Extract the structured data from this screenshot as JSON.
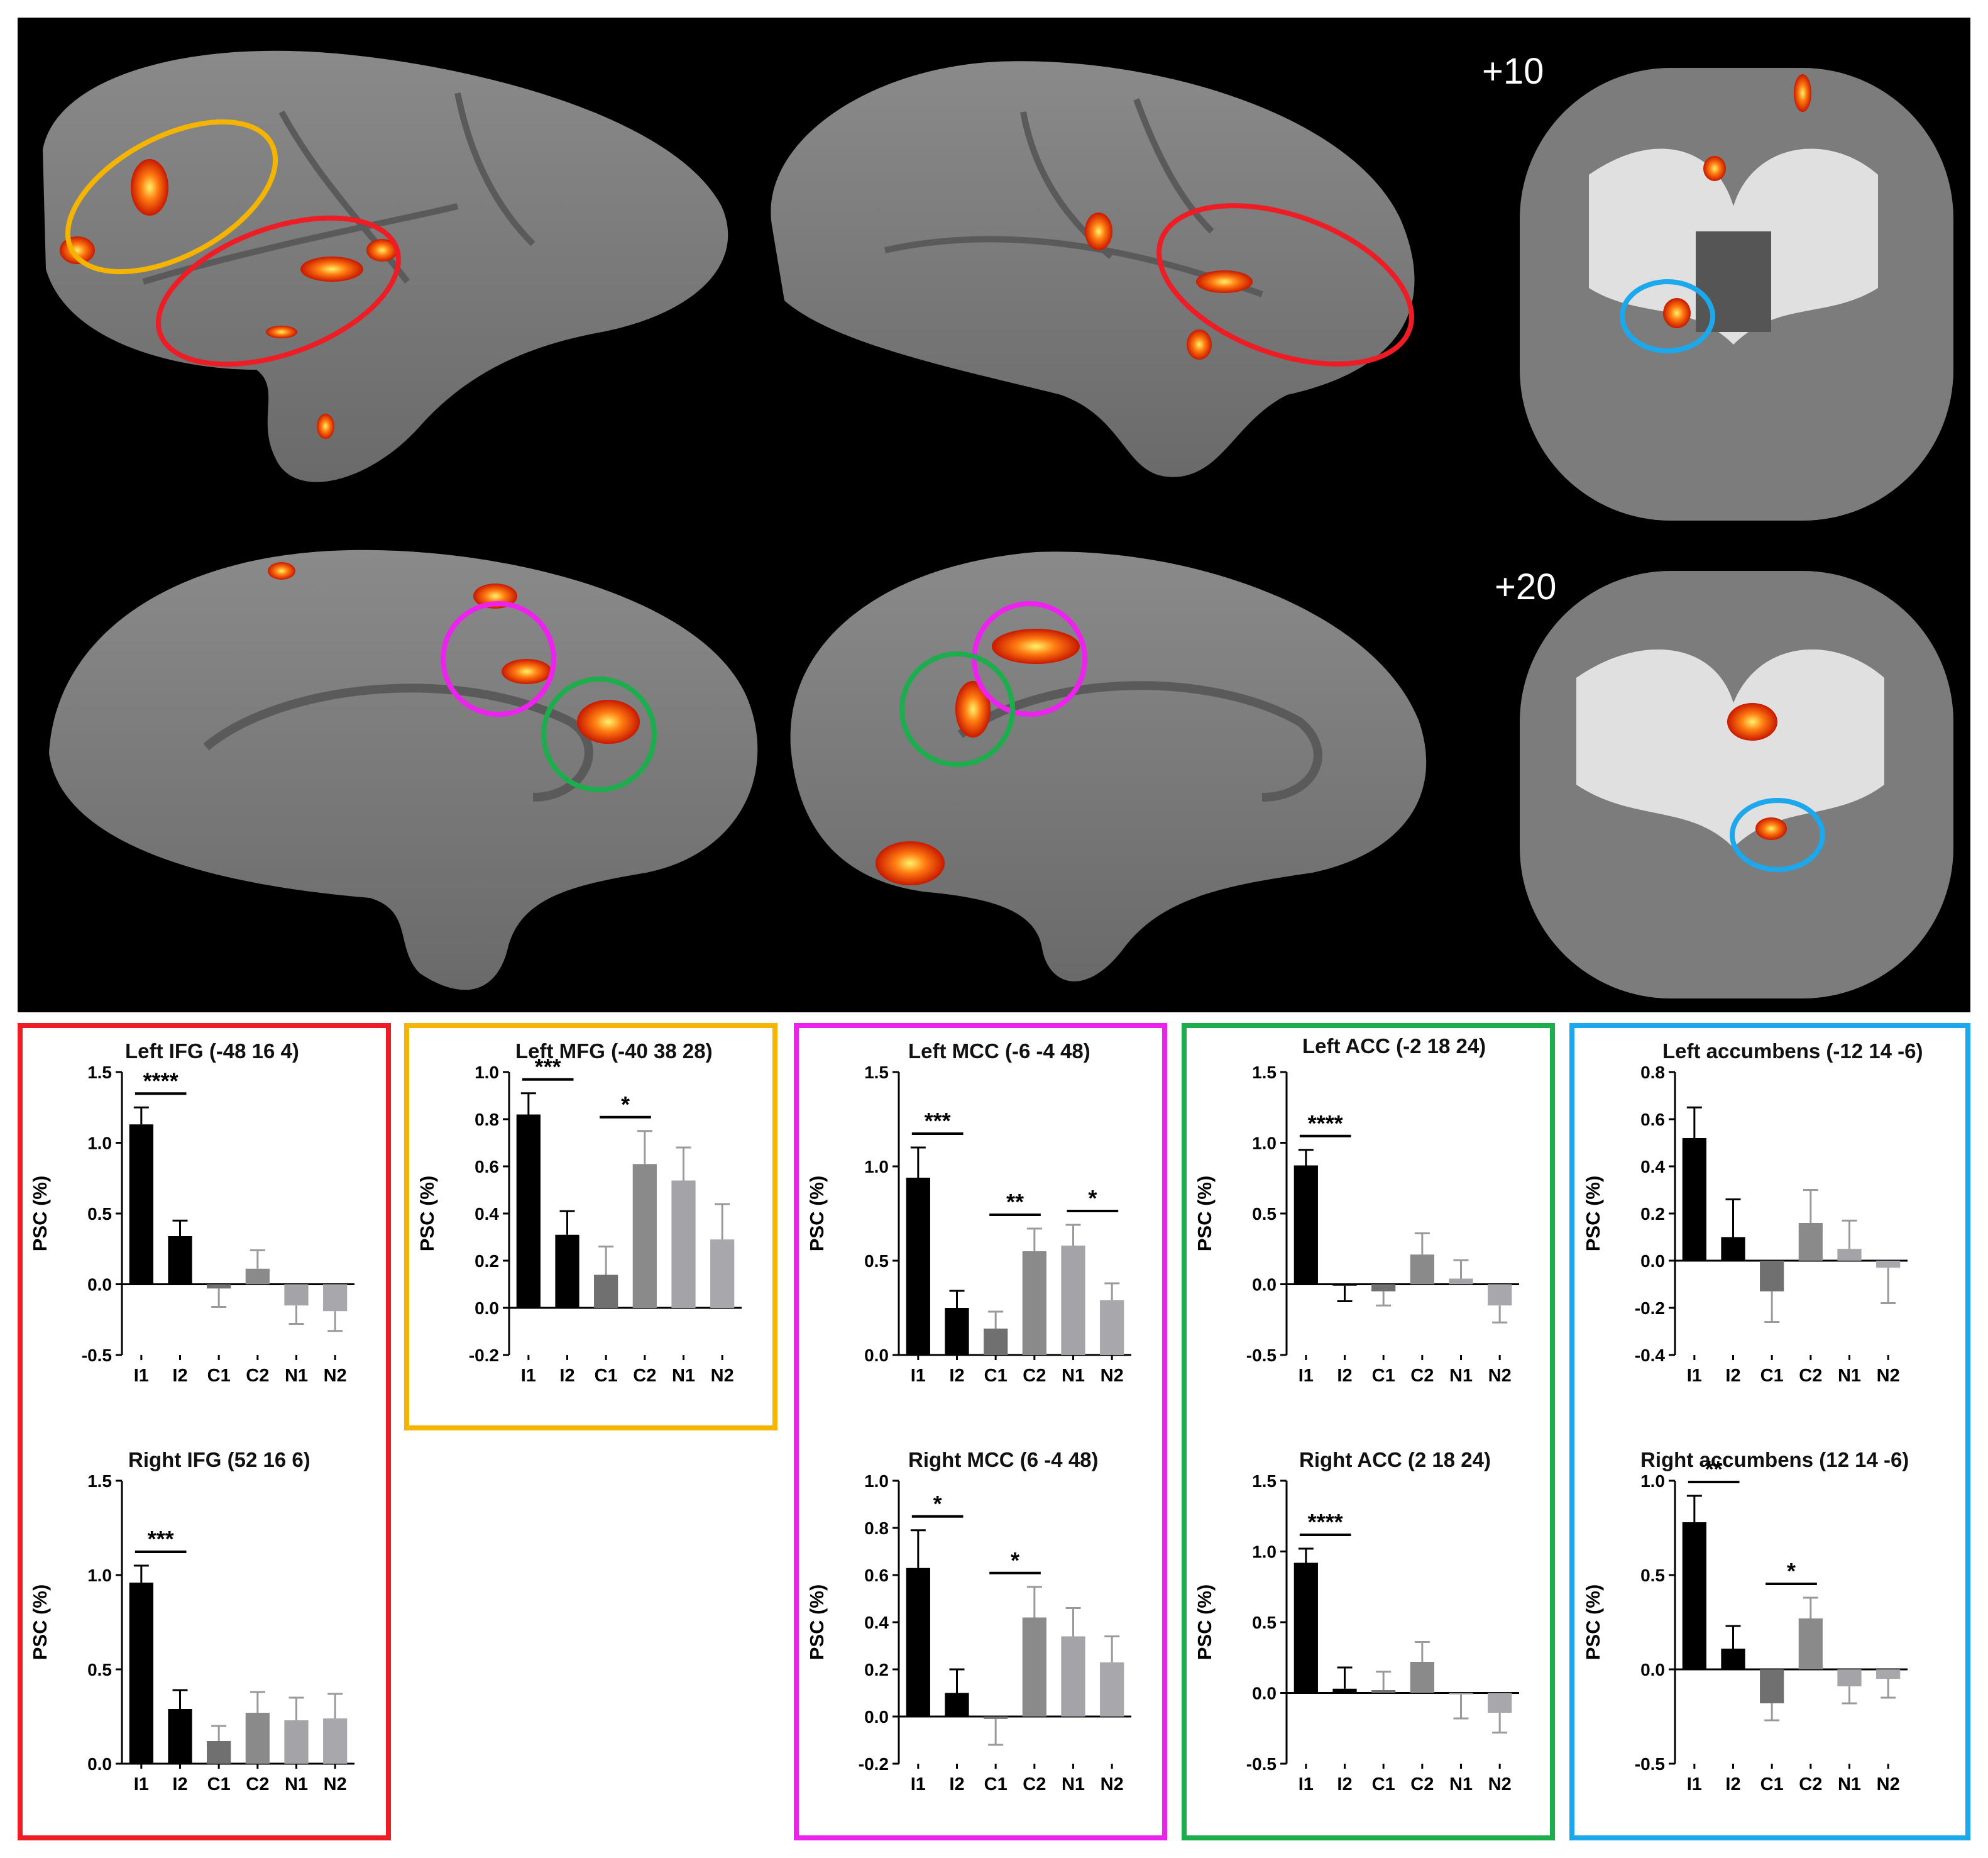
{
  "brain": {
    "slice_labels": [
      "+10",
      "+20"
    ]
  },
  "categories": [
    "I1",
    "I2",
    "C1",
    "C2",
    "N1",
    "N2"
  ],
  "colors": {
    "bars": [
      "#000000",
      "#000000",
      "#707070",
      "#8a8a8a",
      "#a4a4a8",
      "#a8a8ac"
    ],
    "box_red": "#ee1c24",
    "box_yellow": "#f5b400",
    "box_magenta": "#ee22ee",
    "box_green": "#1cad4c",
    "box_blue": "#1ca8ec"
  },
  "chart_data": [
    {
      "type": "bar",
      "title": "Left IFG (-48 16 4)",
      "ylabel": "PSC (%)",
      "categories": [
        "I1",
        "I2",
        "C1",
        "C2",
        "N1",
        "N2"
      ],
      "values": [
        1.13,
        0.34,
        -0.03,
        0.11,
        -0.15,
        -0.19
      ],
      "errors": [
        0.12,
        0.11,
        0.13,
        0.13,
        0.13,
        0.14
      ],
      "ylim": [
        -0.5,
        1.5
      ],
      "yticks": [
        "-0.5",
        "0.0",
        "0.5",
        "1.0",
        "1.5"
      ],
      "significance": [
        {
          "from": "I1",
          "to": "I2",
          "label": "****"
        }
      ]
    },
    {
      "type": "bar",
      "title": "Right IFG (52 16 6)",
      "ylabel": "PSC (%)",
      "categories": [
        "I1",
        "I2",
        "C1",
        "C2",
        "N1",
        "N2"
      ],
      "values": [
        0.96,
        0.29,
        0.12,
        0.27,
        0.23,
        0.24
      ],
      "errors": [
        0.09,
        0.1,
        0.08,
        0.11,
        0.12,
        0.13
      ],
      "ylim": [
        0,
        1.5
      ],
      "yticks": [
        "0.0",
        "0.5",
        "1.0",
        "1.5"
      ],
      "significance": [
        {
          "from": "I1",
          "to": "I2",
          "label": "***"
        }
      ]
    },
    {
      "type": "bar",
      "title": "Left MFG (-40 38 28)",
      "ylabel": "PSC (%)",
      "categories": [
        "I1",
        "I2",
        "C1",
        "C2",
        "N1",
        "N2"
      ],
      "values": [
        0.82,
        0.31,
        0.14,
        0.61,
        0.54,
        0.29
      ],
      "errors": [
        0.09,
        0.1,
        0.12,
        0.14,
        0.14,
        0.15
      ],
      "ylim": [
        -0.2,
        1.0
      ],
      "yticks": [
        "-0.2",
        "0.0",
        "0.2",
        "0.4",
        "0.6",
        "0.8",
        "1.0"
      ],
      "significance": [
        {
          "from": "I1",
          "to": "I2",
          "label": "***"
        },
        {
          "from": "C1",
          "to": "C2",
          "label": "*"
        }
      ]
    },
    {
      "type": "bar",
      "title": "Left MCC (-6 -4 48)",
      "ylabel": "PSC (%)",
      "categories": [
        "I1",
        "I2",
        "C1",
        "C2",
        "N1",
        "N2"
      ],
      "values": [
        0.94,
        0.25,
        0.14,
        0.55,
        0.58,
        0.29
      ],
      "errors": [
        0.16,
        0.09,
        0.09,
        0.12,
        0.11,
        0.09
      ],
      "ylim": [
        0,
        1.5
      ],
      "yticks": [
        "0.0",
        "0.5",
        "1.0",
        "1.5"
      ],
      "significance": [
        {
          "from": "I1",
          "to": "I2",
          "label": "***"
        },
        {
          "from": "C1",
          "to": "C2",
          "label": "**"
        },
        {
          "from": "N1",
          "to": "N2",
          "label": "*"
        }
      ]
    },
    {
      "type": "bar",
      "title": "Right MCC (6 -4 48)",
      "ylabel": "PSC (%)",
      "categories": [
        "I1",
        "I2",
        "C1",
        "C2",
        "N1",
        "N2"
      ],
      "values": [
        0.63,
        0.1,
        -0.01,
        0.42,
        0.34,
        0.23
      ],
      "errors": [
        0.16,
        0.1,
        0.11,
        0.13,
        0.12,
        0.11
      ],
      "ylim": [
        -0.2,
        1.0
      ],
      "yticks": [
        "-0.2",
        "0.0",
        "0.2",
        "0.4",
        "0.6",
        "0.8",
        "1.0"
      ],
      "significance": [
        {
          "from": "I1",
          "to": "I2",
          "label": "*"
        },
        {
          "from": "C1",
          "to": "C2",
          "label": "*"
        }
      ]
    },
    {
      "type": "bar",
      "title": "Left ACC (-2 18 24)",
      "ylabel": "PSC (%)",
      "categories": [
        "I1",
        "I2",
        "C1",
        "C2",
        "N1",
        "N2"
      ],
      "values": [
        0.84,
        -0.01,
        -0.05,
        0.21,
        0.04,
        -0.15
      ],
      "errors": [
        0.11,
        0.11,
        0.1,
        0.15,
        0.13,
        0.12
      ],
      "ylim": [
        -0.5,
        1.5
      ],
      "yticks": [
        "-0.5",
        "0.0",
        "0.5",
        "1.0",
        "1.5"
      ],
      "significance": [
        {
          "from": "I1",
          "to": "I2",
          "label": "****"
        }
      ]
    },
    {
      "type": "bar",
      "title": "Right ACC (2 18 24)",
      "ylabel": "PSC (%)",
      "categories": [
        "I1",
        "I2",
        "C1",
        "C2",
        "N1",
        "N2"
      ],
      "values": [
        0.92,
        0.03,
        0.02,
        0.22,
        -0.01,
        -0.14
      ],
      "errors": [
        0.1,
        0.15,
        0.13,
        0.14,
        0.17,
        0.14
      ],
      "ylim": [
        -0.5,
        1.5
      ],
      "yticks": [
        "-0.5",
        "0.0",
        "0.5",
        "1.0",
        "1.5"
      ],
      "significance": [
        {
          "from": "I1",
          "to": "I2",
          "label": "****"
        }
      ]
    },
    {
      "type": "bar",
      "title": "Left accumbens (-12 14 -6)",
      "ylabel": "PSC (%)",
      "categories": [
        "I1",
        "I2",
        "C1",
        "C2",
        "N1",
        "N2"
      ],
      "values": [
        0.52,
        0.1,
        -0.13,
        0.16,
        0.05,
        -0.03
      ],
      "errors": [
        0.13,
        0.16,
        0.13,
        0.14,
        0.12,
        0.15
      ],
      "ylim": [
        -0.4,
        0.8
      ],
      "yticks": [
        "-0.4",
        "-0.2",
        "0.0",
        "0.2",
        "0.4",
        "0.6",
        "0.8"
      ],
      "significance": []
    },
    {
      "type": "bar",
      "title": "Right accumbens (12 14 -6)",
      "ylabel": "PSC (%)",
      "categories": [
        "I1",
        "I2",
        "C1",
        "C2",
        "N1",
        "N2"
      ],
      "values": [
        0.78,
        0.11,
        -0.18,
        0.27,
        -0.09,
        -0.05
      ],
      "errors": [
        0.14,
        0.12,
        0.09,
        0.11,
        0.09,
        0.1
      ],
      "ylim": [
        -0.5,
        1.0
      ],
      "yticks": [
        "-0.5",
        "0.0",
        "0.5",
        "1.0"
      ],
      "significance": [
        {
          "from": "I1",
          "to": "I2",
          "label": "**"
        },
        {
          "from": "C1",
          "to": "C2",
          "label": "*"
        }
      ]
    }
  ]
}
